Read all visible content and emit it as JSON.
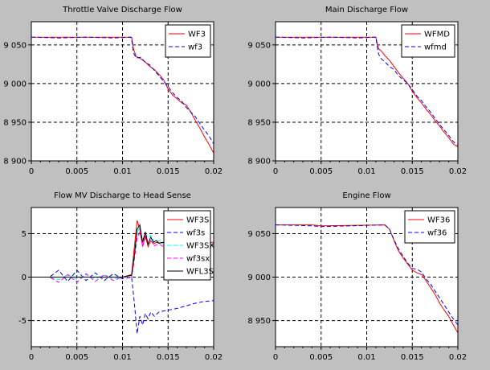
{
  "chart_data": [
    {
      "type": "line",
      "title": "Throttle Valve Discharge Flow",
      "xlim": [
        0,
        0.02
      ],
      "ylim": [
        8900,
        9080
      ],
      "x_ticks": [
        "0",
        "0.005",
        "0.01",
        "0.015",
        "0.02"
      ],
      "y_ticks": [
        "8 900",
        "8 950",
        "9 000",
        "9 050"
      ],
      "y_tick_values": [
        8900,
        8950,
        9000,
        9050
      ],
      "grid": true,
      "legend": "top-right",
      "series": [
        {
          "name": "WF3",
          "color": "#ff0000",
          "dash": "solid",
          "x": [
            0,
            0.0109,
            0.011,
            0.0112,
            0.0115,
            0.012,
            0.0125,
            0.013,
            0.0135,
            0.014,
            0.0145,
            0.015,
            0.0155,
            0.016,
            0.0165,
            0.017,
            0.0175,
            0.018,
            0.0185,
            0.019,
            0.0195,
            0.02
          ],
          "y": [
            9060,
            9060,
            9060,
            9045,
            9035,
            9032,
            9028,
            9022,
            9018,
            9012,
            9005,
            8993,
            8985,
            8980,
            8975,
            8972,
            8963,
            8952,
            8942,
            8931,
            8921,
            8910
          ]
        },
        {
          "name": "wf3",
          "color": "#0000ff",
          "dash": "dashed",
          "x": [
            0,
            0.003,
            0.006,
            0.009,
            0.0109,
            0.011,
            0.0112,
            0.0115,
            0.012,
            0.0125,
            0.013,
            0.0135,
            0.014,
            0.0145,
            0.015,
            0.0155,
            0.016,
            0.0165,
            0.017,
            0.0175,
            0.018,
            0.0185,
            0.019,
            0.0195,
            0.02
          ],
          "y": [
            9060,
            9059,
            9060,
            9059,
            9060,
            9058,
            9040,
            9033,
            9034,
            9027,
            9024,
            9017,
            9010,
            9003,
            8996,
            8988,
            8982,
            8977,
            8969,
            8963,
            8957,
            8948,
            8940,
            8932,
            8922
          ]
        }
      ]
    },
    {
      "type": "line",
      "title": "Main Discharge Flow",
      "xlim": [
        0,
        0.02
      ],
      "ylim": [
        8900,
        9080
      ],
      "x_ticks": [
        "0",
        "0.005",
        "0.01",
        "0.015",
        "0.02"
      ],
      "y_ticks": [
        "8 900",
        "8 950",
        "9 000",
        "9 050"
      ],
      "y_tick_values": [
        8900,
        8950,
        9000,
        9050
      ],
      "grid": true,
      "legend": "top-right",
      "series": [
        {
          "name": "WFMD",
          "color": "#ff0000",
          "dash": "solid",
          "x": [
            0,
            0.011,
            0.0113,
            0.0116,
            0.012,
            0.0125,
            0.013,
            0.0135,
            0.014,
            0.0145,
            0.015,
            0.0155,
            0.016,
            0.0165,
            0.017,
            0.0175,
            0.018,
            0.0185,
            0.019,
            0.0195,
            0.02
          ],
          "y": [
            9060,
            9060,
            9045,
            9042,
            9036,
            9030,
            9022,
            9014,
            9007,
            9000,
            8990,
            8982,
            8975,
            8967,
            8960,
            8952,
            8945,
            8937,
            8930,
            8922,
            8918
          ]
        },
        {
          "name": "wfmd",
          "color": "#0000ff",
          "dash": "dashed",
          "x": [
            0,
            0.003,
            0.006,
            0.009,
            0.011,
            0.0113,
            0.0116,
            0.012,
            0.0125,
            0.013,
            0.0135,
            0.014,
            0.0145,
            0.015,
            0.0155,
            0.016,
            0.0165,
            0.017,
            0.0175,
            0.018,
            0.0185,
            0.019,
            0.0195,
            0.02
          ],
          "y": [
            9060,
            9059,
            9060,
            9059,
            9060,
            9038,
            9032,
            9028,
            9022,
            9018,
            9010,
            9005,
            9000,
            8992,
            8984,
            8978,
            8970,
            8963,
            8955,
            8947,
            8940,
            8933,
            8925,
            8920
          ]
        }
      ]
    },
    {
      "type": "line",
      "title": "Flow MV Discharge to Head Sense",
      "xlim": [
        0,
        0.02
      ],
      "ylim": [
        -8,
        8
      ],
      "x_ticks": [
        "0",
        "0.005",
        "0.01",
        "0.015",
        "0.02"
      ],
      "y_ticks": [
        "-5",
        "0",
        "5"
      ],
      "y_tick_values": [
        -5,
        0,
        5
      ],
      "grid": true,
      "legend": "top-right",
      "series": [
        {
          "name": "WF3S",
          "color": "#ff0000",
          "dash": "solid",
          "x": [
            0,
            0.005,
            0.01,
            0.011,
            0.0113,
            0.0116,
            0.0119,
            0.0122,
            0.0125,
            0.0128,
            0.0131,
            0.0134,
            0.0137,
            0.014,
            0.0145,
            0.015,
            0.016,
            0.017,
            0.018,
            0.019,
            0.02
          ],
          "y": [
            0,
            0,
            0,
            0.3,
            3.5,
            6.5,
            5.5,
            3.5,
            4.8,
            3.5,
            4.2,
            3.8,
            4.0,
            3.9,
            4.0,
            4.0,
            4.0,
            4.0,
            4.0,
            4.0,
            4.0
          ]
        },
        {
          "name": "wf3s",
          "color": "#0000ff",
          "dash": "dashed",
          "x": [
            0,
            0.002,
            0.003,
            0.004,
            0.005,
            0.006,
            0.007,
            0.008,
            0.009,
            0.01,
            0.011,
            0.0113,
            0.0116,
            0.0119,
            0.0122,
            0.0125,
            0.0128,
            0.0131,
            0.0135,
            0.014,
            0.015,
            0.016,
            0.017,
            0.018,
            0.019,
            0.02
          ],
          "y": [
            0,
            0,
            0.8,
            -0.5,
            0.8,
            -0.4,
            0.5,
            -0.4,
            0.4,
            -0.2,
            0,
            -3.0,
            -6.5,
            -4.5,
            -5.5,
            -4.2,
            -4.8,
            -4.0,
            -4.5,
            -4.0,
            -3.8,
            -3.6,
            -3.3,
            -3.0,
            -2.8,
            -2.7
          ]
        },
        {
          "name": "WF3SX",
          "color": "#00ffff",
          "dash": "dashed",
          "x": [
            0,
            0.002,
            0.003,
            0.004,
            0.005,
            0.006,
            0.007,
            0.008,
            0.009,
            0.01,
            0.011,
            0.0113,
            0.0116,
            0.0119,
            0.0122,
            0.0125,
            0.0128,
            0.0131,
            0.0135,
            0.014,
            0.0145,
            0.015
          ],
          "y": [
            0,
            0,
            -0.3,
            0.3,
            -0.3,
            0.3,
            -0.2,
            0.2,
            -0.2,
            0,
            0,
            2.5,
            5.0,
            5.8,
            4.2,
            5.0,
            4.5,
            4.8,
            4.0,
            4.2,
            3.8,
            4.0
          ]
        },
        {
          "name": "wf3sx",
          "color": "#ff00ff",
          "dash": "dashed",
          "x": [
            0,
            0.002,
            0.003,
            0.004,
            0.005,
            0.006,
            0.007,
            0.008,
            0.009,
            0.01,
            0.011,
            0.0113,
            0.0116,
            0.0119,
            0.0122,
            0.0125,
            0.0128,
            0.0131,
            0.0135,
            0.014,
            0.0145,
            0.015
          ],
          "y": [
            0,
            0,
            -0.6,
            0.3,
            -0.6,
            0.4,
            -0.5,
            0.3,
            -0.4,
            0,
            0,
            2.0,
            4.5,
            5.2,
            3.5,
            4.5,
            3.8,
            4.2,
            3.6,
            3.8,
            3.5,
            3.8
          ]
        },
        {
          "name": "WFL3S",
          "color": "#000000",
          "dash": "solid",
          "x": [
            0,
            0.01,
            0.011,
            0.0113,
            0.0116,
            0.0119,
            0.0122,
            0.0125,
            0.0128,
            0.0131,
            0.0134,
            0.0137,
            0.014,
            0.0145,
            0.015
          ],
          "y": [
            0,
            0,
            0.2,
            2.5,
            5.5,
            6.0,
            4.0,
            5.2,
            3.8,
            4.6,
            4.0,
            4.2,
            3.9,
            4.0,
            4.0
          ]
        }
      ]
    },
    {
      "type": "line",
      "title": "Engine Flow",
      "xlim": [
        0,
        0.02
      ],
      "ylim": [
        8920,
        9080
      ],
      "x_ticks": [
        "0",
        "0.005",
        "0.01",
        "0.015",
        "0.02"
      ],
      "y_ticks": [
        "8 950",
        "9 000",
        "9 050"
      ],
      "y_tick_values": [
        8950,
        9000,
        9050
      ],
      "grid": true,
      "legend": "top-right",
      "series": [
        {
          "name": "WF36",
          "color": "#ff0000",
          "dash": "solid",
          "x": [
            0,
            0.004,
            0.005,
            0.012,
            0.0125,
            0.013,
            0.0135,
            0.014,
            0.0145,
            0.015,
            0.0155,
            0.016,
            0.0165,
            0.017,
            0.0175,
            0.018,
            0.0185,
            0.019,
            0.0195,
            0.02
          ],
          "y": [
            9060,
            9060,
            9059,
            9060,
            9055,
            9042,
            9030,
            9022,
            9015,
            9008,
            9005,
            9003,
            8996,
            8988,
            8980,
            8970,
            8962,
            8955,
            8945,
            8936
          ]
        },
        {
          "name": "wf36",
          "color": "#0000ff",
          "dash": "dashed",
          "x": [
            0,
            0.004,
            0.005,
            0.012,
            0.0125,
            0.013,
            0.0135,
            0.014,
            0.0145,
            0.015,
            0.0155,
            0.016,
            0.0165,
            0.017,
            0.0175,
            0.018,
            0.0185,
            0.019,
            0.0195,
            0.02
          ],
          "y": [
            9060,
            9059,
            9058,
            9060,
            9055,
            9043,
            9032,
            9024,
            9016,
            9010,
            9009,
            9006,
            8998,
            8992,
            8984,
            8976,
            8968,
            8960,
            8952,
            8945
          ]
        }
      ]
    }
  ]
}
